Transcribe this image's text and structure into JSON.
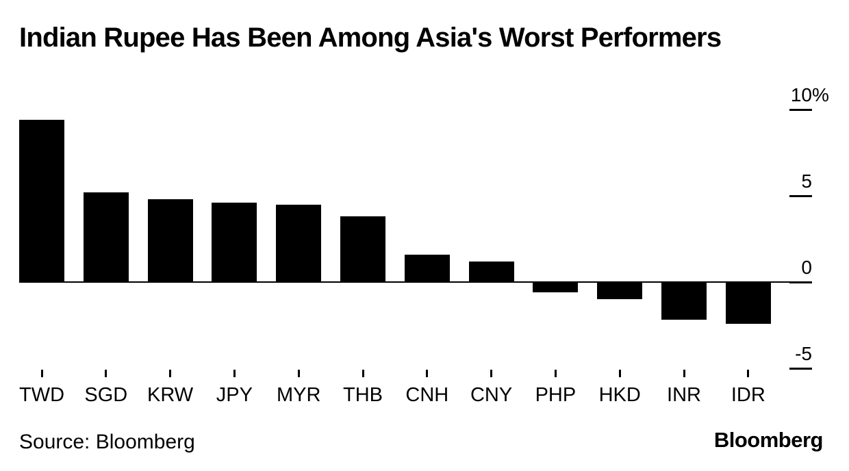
{
  "header": {
    "title": "Indian Rupee Has Been Among Asia's Worst Performers"
  },
  "chart_data": {
    "type": "bar",
    "title": "Indian Rupee Has Been Among Asia's Worst Performers",
    "categories": [
      "TWD",
      "SGD",
      "KRW",
      "JPY",
      "MYR",
      "THB",
      "CNH",
      "CNY",
      "PHP",
      "HKD",
      "INR",
      "IDR"
    ],
    "values": [
      9.4,
      5.2,
      4.8,
      4.6,
      4.5,
      3.8,
      1.6,
      1.2,
      -0.6,
      -1.0,
      -2.2,
      -2.4
    ],
    "unit": "%",
    "xlabel": "",
    "ylabel": "",
    "y_ticks": [
      {
        "value": 10,
        "label": "10%"
      },
      {
        "value": 5,
        "label": "5"
      },
      {
        "value": 0,
        "label": "0"
      },
      {
        "value": -5,
        "label": "-5"
      }
    ],
    "ylim": [
      -5.5,
      11.5
    ],
    "grid": false,
    "legend": "none",
    "axis_side": "right",
    "bar_color": "#000000",
    "background_color": "#ffffff"
  },
  "footer": {
    "source": "Source: Bloomberg",
    "logo": "Bloomberg"
  }
}
